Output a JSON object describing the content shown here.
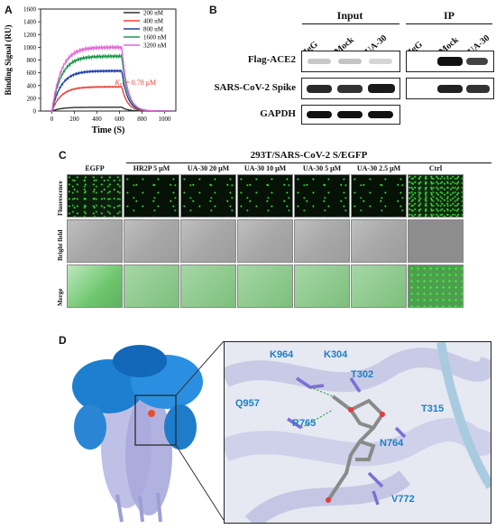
{
  "panels": {
    "a": "A",
    "b": "B",
    "c": "C",
    "d": "D"
  },
  "chart_data": {
    "type": "line",
    "xlabel": "Time (S)",
    "ylabel": "Binding Signal (RU)",
    "xlim": [
      -100,
      1100
    ],
    "ylim": [
      0,
      1600
    ],
    "xticks": [
      0,
      200,
      400,
      600,
      800,
      1000
    ],
    "yticks": [
      0,
      200,
      400,
      600,
      800,
      1000,
      1200,
      1400,
      1600
    ],
    "legend_position": "top-right",
    "annotation_text": "K",
    "annotation_sub": "D",
    "annotation_rest": " = 0.78 μM",
    "series": [
      {
        "name": "200 nM",
        "color": "#333333",
        "plateau": 60
      },
      {
        "name": "400 nM",
        "color": "#e8433a",
        "plateau": 380
      },
      {
        "name": "800 nM",
        "color": "#1f3fa8",
        "plateau": 630
      },
      {
        "name": "1600 nM",
        "color": "#1a9a4a",
        "plateau": 860
      },
      {
        "name": "3200 nM",
        "color": "#e36ad8",
        "plateau": 1000
      }
    ]
  },
  "blot": {
    "group_input": "Input",
    "group_ip": "IP",
    "lanes": [
      "IgG",
      "Mock",
      "UA-30",
      "IgG",
      "Mock",
      "UA-30"
    ],
    "rows": [
      "Flag-ACE2",
      "SARS-CoV-2 Spike",
      "GAPDH"
    ]
  },
  "microscopy": {
    "title": "293T/SARS-CoV-2 S/EGFP",
    "columns": [
      "EGFP",
      "HR2P 5 μM",
      "UA-30 20 μM",
      "UA-30 10 μM",
      "UA-30 5 μM",
      "UA-30 2.5 μM",
      "Ctrl"
    ],
    "rows": [
      "Fluorescence",
      "Bright field",
      "Merge"
    ]
  },
  "structure": {
    "residues": [
      "K964",
      "K304",
      "T302",
      "Q957",
      "T315",
      "R765",
      "N764",
      "V772"
    ]
  }
}
